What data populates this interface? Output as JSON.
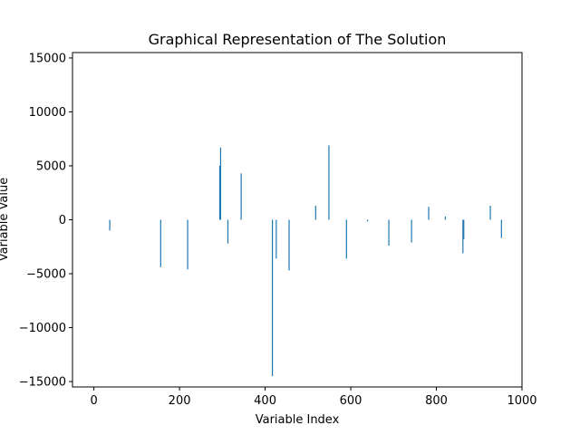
{
  "chart_data": {
    "type": "bar",
    "title": "Graphical Representation of The Solution",
    "xlabel": "Variable Index",
    "ylabel": "Variable Value",
    "xlim": [
      -50,
      1000
    ],
    "ylim": [
      -15500,
      15500
    ],
    "xticks": [
      0,
      200,
      400,
      600,
      800,
      1000
    ],
    "yticks": [
      -15000,
      -10000,
      -5000,
      0,
      5000,
      10000,
      15000
    ],
    "bar_color": "#1f77b4",
    "grid": false,
    "points": [
      {
        "x": 37,
        "y": -1000
      },
      {
        "x": 156,
        "y": -4400
      },
      {
        "x": 219,
        "y": -4600
      },
      {
        "x": 294,
        "y": 5000
      },
      {
        "x": 296,
        "y": 6700
      },
      {
        "x": 313,
        "y": -2200
      },
      {
        "x": 344,
        "y": 4300
      },
      {
        "x": 417,
        "y": -14500
      },
      {
        "x": 426,
        "y": -3600
      },
      {
        "x": 456,
        "y": -4700
      },
      {
        "x": 518,
        "y": 1300
      },
      {
        "x": 549,
        "y": 6900
      },
      {
        "x": 590,
        "y": -3600
      },
      {
        "x": 639,
        "y": -150
      },
      {
        "x": 689,
        "y": -2400
      },
      {
        "x": 742,
        "y": -2100
      },
      {
        "x": 782,
        "y": 1200
      },
      {
        "x": 821,
        "y": 300
      },
      {
        "x": 862,
        "y": -3100
      },
      {
        "x": 864,
        "y": -1800
      },
      {
        "x": 926,
        "y": 1300
      },
      {
        "x": 952,
        "y": -1700
      }
    ]
  }
}
